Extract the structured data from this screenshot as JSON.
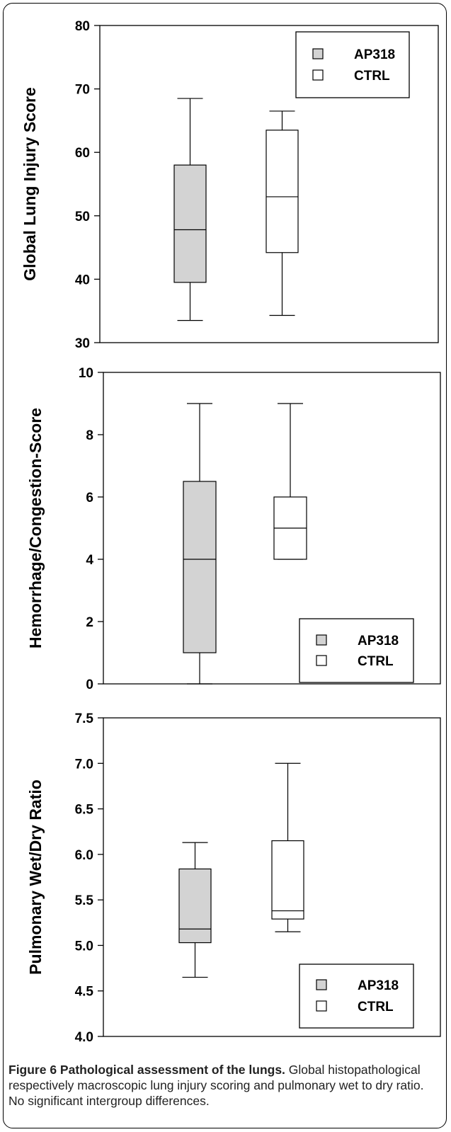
{
  "chart_data": [
    {
      "type": "box",
      "ylabel": "Global  Lung Injury Score",
      "ylim": [
        30,
        80
      ],
      "yticks": [
        "30",
        "40",
        "50",
        "60",
        "70",
        "80"
      ],
      "legend": {
        "position": "top-right",
        "entries": [
          "AP318",
          "CTRL"
        ]
      },
      "series": [
        {
          "name": "AP318",
          "color": "#d3d3d3",
          "min": 33.5,
          "q1": 39.5,
          "median": 47.8,
          "q3": 58.0,
          "max": 68.5
        },
        {
          "name": "CTRL",
          "color": "#ffffff",
          "min": 34.3,
          "q1": 44.2,
          "median": 53.0,
          "q3": 63.5,
          "max": 66.5
        }
      ]
    },
    {
      "type": "box",
      "ylabel": "Hemorrhage/Congestion-Score",
      "ylim": [
        0,
        10
      ],
      "yticks": [
        "0",
        "2",
        "4",
        "6",
        "8",
        "10"
      ],
      "legend": {
        "position": "bottom-right",
        "entries": [
          "AP318",
          "CTRL"
        ]
      },
      "series": [
        {
          "name": "AP318",
          "color": "#d3d3d3",
          "min": 0,
          "q1": 1,
          "median": 4,
          "q3": 6.5,
          "max": 9
        },
        {
          "name": "CTRL",
          "color": "#ffffff",
          "min": 4,
          "q1": 4,
          "median": 5,
          "q3": 6,
          "max": 9
        }
      ]
    },
    {
      "type": "box",
      "ylabel": "Pulmonary Wet/Dry Ratio",
      "ylim": [
        4.0,
        7.5
      ],
      "yticks": [
        "4.0",
        "4.5",
        "5.0",
        "5.5",
        "6.0",
        "6.5",
        "7.0",
        "7.5"
      ],
      "legend": {
        "position": "bottom-right",
        "entries": [
          "AP318",
          "CTRL"
        ]
      },
      "series": [
        {
          "name": "AP318",
          "color": "#d3d3d3",
          "min": 4.65,
          "q1": 5.03,
          "median": 5.18,
          "q3": 5.84,
          "max": 6.13
        },
        {
          "name": "CTRL",
          "color": "#ffffff",
          "min": 5.15,
          "q1": 5.29,
          "median": 5.38,
          "q3": 6.15,
          "max": 7.0
        }
      ]
    }
  ],
  "caption": {
    "title": "Figure 6 Pathological assessment of the lungs.",
    "text": " Global histopathological respectively macroscopic lung injury scoring and pulmonary wet to dry ratio. No significant intergroup differences."
  }
}
